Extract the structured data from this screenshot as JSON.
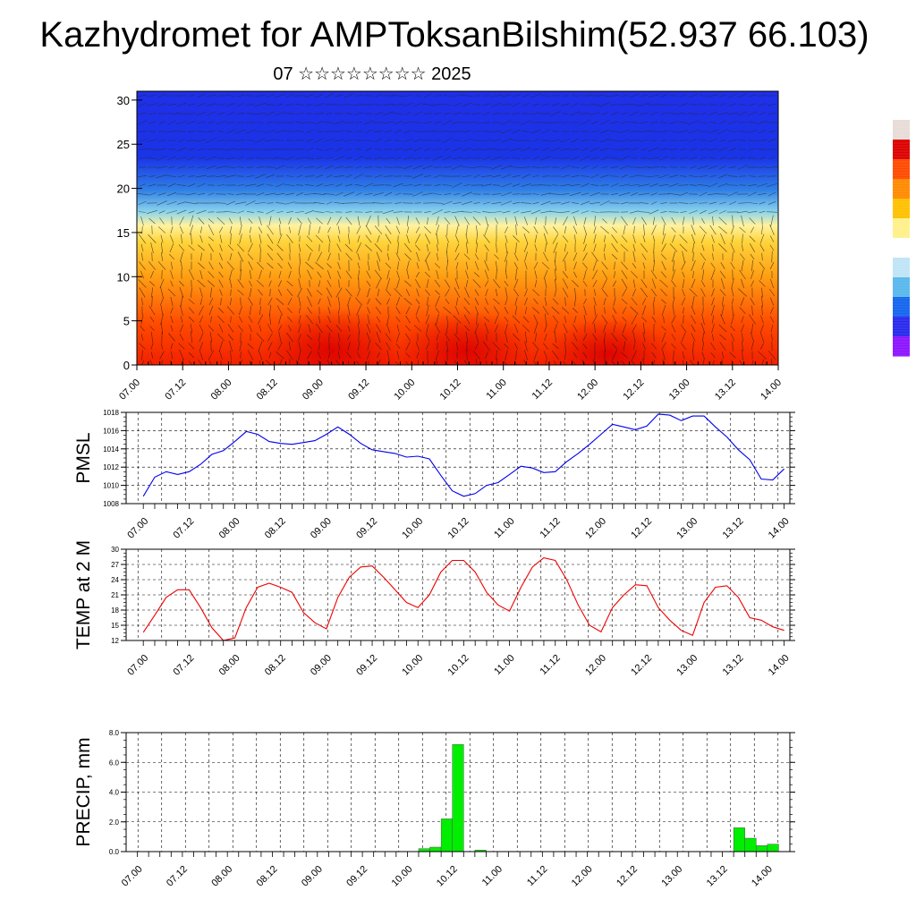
{
  "header": {
    "title": "Kazhydromet for AMPToksanBilshim(52.937 66.103)",
    "subtitle": "07 ☆☆☆☆☆☆☆☆ 2025"
  },
  "colors": {
    "pressure_line": "#0000ee",
    "temperature_line": "#ee0000",
    "precip_bar": "#00ee00",
    "colorbar": [
      "#ffffff",
      "#e8dcd8",
      "#dc0000",
      "#ff4a00",
      "#ff8a00",
      "#ffc000",
      "#fff08a",
      "#ffffff",
      "#bfe4f6",
      "#58b8ec",
      "#1464ee",
      "#2828ee",
      "#8c14ff"
    ]
  },
  "chart_data": [
    {
      "type": "heatmap",
      "title": "",
      "yticks": [
        0,
        5,
        10,
        15,
        20,
        25,
        30
      ],
      "ylim": [
        0,
        31
      ],
      "xticks": [
        "07.00",
        "07.12",
        "08.00",
        "08.12",
        "09.00",
        "09.12",
        "10.00",
        "10.12",
        "11.00",
        "11.12",
        "12.00",
        "12.12",
        "13.00",
        "13.12",
        "14.00"
      ],
      "overlay": "wind vector field",
      "colorbar": "vertical, right side, unlabeled"
    },
    {
      "type": "line",
      "ylabel": "PMSL",
      "ylim": [
        1008,
        1018
      ],
      "yticks": [
        1008,
        1010,
        1012,
        1014,
        1016,
        1018
      ],
      "xticks": [
        "07.00",
        "07.12",
        "08.00",
        "08.12",
        "09.00",
        "09.12",
        "10.00",
        "10.12",
        "11.00",
        "11.12",
        "12.00",
        "12.12",
        "13.00",
        "13.12",
        "14.00"
      ],
      "grid": true,
      "values": [
        1008.8,
        1010.9,
        1011.5,
        1011.2,
        1011.5,
        1012.3,
        1013.4,
        1013.8,
        1014.8,
        1015.9,
        1015.6,
        1014.8,
        1014.6,
        1014.5,
        1014.7,
        1014.9,
        1015.6,
        1016.4,
        1015.6,
        1014.6,
        1013.9,
        1013.7,
        1013.5,
        1013.1,
        1013.2,
        1012.9,
        1011.1,
        1009.4,
        1008.8,
        1009.1,
        1010.0,
        1010.3,
        1011.2,
        1012.1,
        1011.9,
        1011.4,
        1011.5,
        1012.6,
        1013.5,
        1014.5,
        1015.6,
        1016.7,
        1016.4,
        1016.1,
        1016.5,
        1017.8,
        1017.7,
        1017.1,
        1017.6,
        1017.6,
        1016.4,
        1015.3,
        1013.9,
        1012.8,
        1010.7,
        1010.6,
        1011.8
      ]
    },
    {
      "type": "line",
      "ylabel": "TEMP at 2 M",
      "ylim": [
        12,
        30
      ],
      "yticks": [
        12,
        15,
        18,
        21,
        24,
        27,
        30
      ],
      "xticks": [
        "07.00",
        "07.12",
        "08.00",
        "08.12",
        "09.00",
        "09.12",
        "10.00",
        "10.12",
        "11.00",
        "11.12",
        "12.00",
        "12.12",
        "13.00",
        "13.12",
        "14.00"
      ],
      "grid": true,
      "values": [
        13.6,
        17.0,
        20.5,
        22.0,
        22.0,
        18.5,
        14.5,
        12.0,
        12.5,
        18.5,
        22.5,
        23.3,
        22.5,
        21.5,
        17.5,
        15.5,
        14.3,
        20.5,
        24.5,
        26.5,
        26.7,
        24.5,
        22.0,
        19.5,
        18.5,
        21.0,
        25.5,
        27.8,
        27.8,
        25.5,
        21.5,
        19.0,
        17.8,
        22.5,
        26.5,
        28.3,
        27.8,
        24.0,
        19.0,
        15.0,
        13.7,
        18.5,
        21.0,
        23.0,
        22.8,
        18.5,
        16.0,
        14.0,
        13.0,
        19.5,
        22.5,
        22.8,
        20.5,
        16.5,
        16.0,
        14.7,
        14.0
      ]
    },
    {
      "type": "bar",
      "ylabel": "PRECIP, mm",
      "ylim": [
        0,
        8
      ],
      "yticks": [
        "0.0",
        "2.0",
        "4.0",
        "6.0",
        "8.0"
      ],
      "xticks": [
        "07.00",
        "07.12",
        "08.00",
        "08.12",
        "09.00",
        "09.12",
        "10.00",
        "10.12",
        "11.00",
        "11.12",
        "12.00",
        "12.12",
        "13.00",
        "13.12",
        "14.00"
      ],
      "grid": true,
      "bar_width_steps": 1,
      "values": [
        0,
        0,
        0,
        0,
        0,
        0,
        0,
        0,
        0,
        0,
        0,
        0,
        0,
        0,
        0,
        0,
        0,
        0,
        0,
        0,
        0,
        0,
        0,
        0,
        0,
        0.2,
        0.3,
        2.2,
        7.2,
        0,
        0.1,
        0,
        0,
        0,
        0,
        0,
        0,
        0,
        0,
        0,
        0,
        0,
        0,
        0,
        0,
        0,
        0,
        0,
        0,
        0,
        0,
        0,
        0,
        1.6,
        0.9,
        0.4,
        0.5
      ]
    }
  ]
}
